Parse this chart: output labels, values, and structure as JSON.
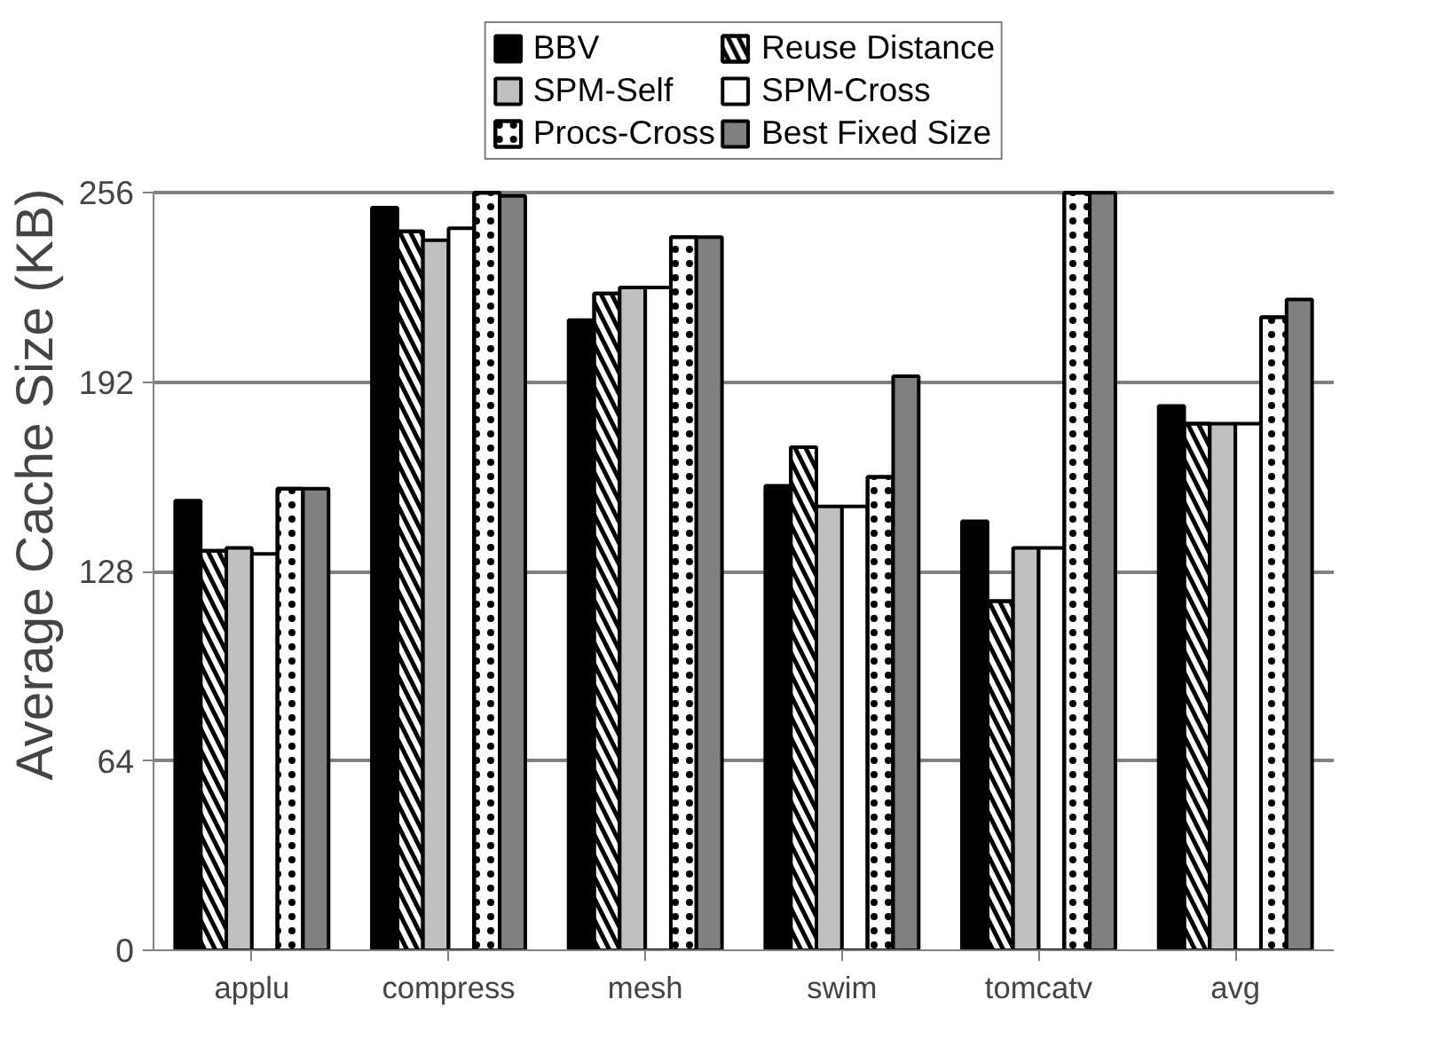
{
  "chart_data": {
    "type": "bar",
    "ylabel": "Average Cache Size (KB)",
    "categories": [
      "applu",
      "compress",
      "mesh",
      "swim",
      "tomcatv",
      "avg"
    ],
    "series": [
      {
        "name": "BBV",
        "color": "#000000",
        "values": [
          152,
          251,
          213,
          157,
          145,
          184
        ]
      },
      {
        "name": "Reuse Distance",
        "color": "#ffffff",
        "values": [
          135,
          243,
          222,
          170,
          118,
          178
        ]
      },
      {
        "name": "SPM-Self",
        "color": "#c0c0c0",
        "values": [
          136,
          240,
          224,
          150,
          136,
          178
        ]
      },
      {
        "name": "SPM-Cross",
        "color": "#ffffff",
        "values": [
          134,
          244,
          224,
          150,
          136,
          178
        ]
      },
      {
        "name": "Procs-Cross",
        "color": "#ffffff",
        "values": [
          156,
          256,
          241,
          160,
          256,
          214
        ]
      },
      {
        "name": "Best Fixed Size",
        "color": "#808080",
        "values": [
          156,
          255,
          241,
          194,
          256,
          220
        ]
      }
    ],
    "ylim": [
      0,
      256
    ],
    "yticks": [
      0,
      64,
      128,
      192,
      256
    ],
    "grid": "y",
    "legend": "top"
  }
}
